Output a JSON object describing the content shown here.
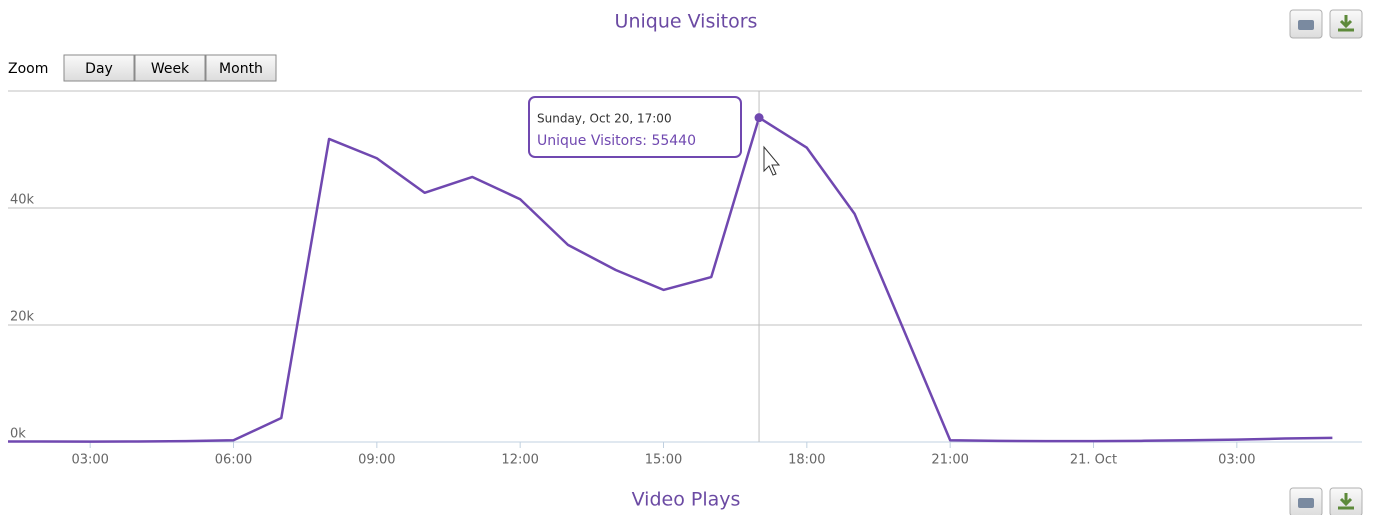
{
  "zoom": {
    "label": "Zoom",
    "buttons": [
      "Day",
      "Week",
      "Month"
    ]
  },
  "chart_data": {
    "type": "line",
    "title": "Unique Visitors",
    "color": "#7048b0",
    "x": [
      1,
      2,
      3,
      4,
      5,
      6,
      7,
      8,
      9,
      10,
      11,
      12,
      13,
      14,
      15,
      16,
      17,
      18,
      19,
      20,
      21,
      22,
      23,
      24,
      25,
      26,
      27,
      28,
      29
    ],
    "values": [
      100,
      80,
      60,
      80,
      150,
      300,
      4100,
      51800,
      48500,
      42600,
      45300,
      41500,
      33700,
      29400,
      26000,
      28200,
      55440,
      50300,
      39000,
      19700,
      300,
      200,
      150,
      150,
      200,
      300,
      400,
      600,
      700
    ],
    "xlim": [
      1.28,
      29.62
    ],
    "xticks": [
      {
        "value": 3,
        "label": "03:00"
      },
      {
        "value": 6,
        "label": "06:00"
      },
      {
        "value": 9,
        "label": "09:00"
      },
      {
        "value": 12,
        "label": "12:00"
      },
      {
        "value": 15,
        "label": "15:00"
      },
      {
        "value": 18,
        "label": "18:00"
      },
      {
        "value": 21,
        "label": "21:00"
      },
      {
        "value": 24,
        "label": "21. Oct"
      },
      {
        "value": 27,
        "label": "03:00"
      }
    ],
    "ylim": [
      0,
      60000
    ],
    "yticks": [
      {
        "value": 0,
        "label": "0k"
      },
      {
        "value": 20000,
        "label": "20k"
      },
      {
        "value": 40000,
        "label": "40k"
      }
    ],
    "grid": true,
    "tooltip": {
      "index": 16,
      "header": "Sunday, Oct 20, 17:00",
      "text": "Unique Visitors: 55440"
    }
  },
  "next_chart": {
    "title": "Video Plays"
  }
}
